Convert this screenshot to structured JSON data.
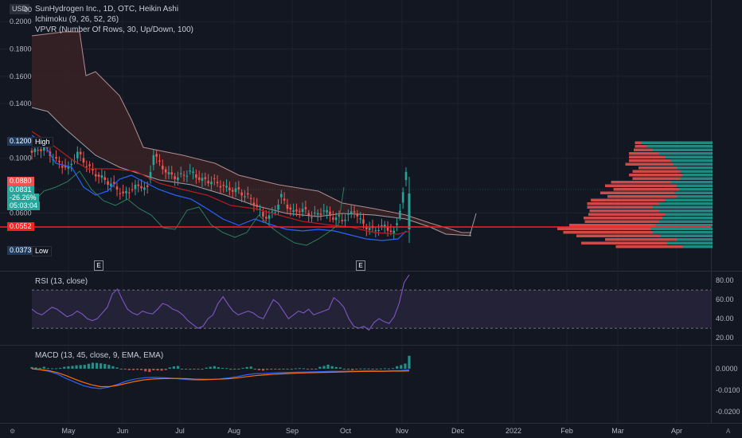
{
  "header": {
    "currency": "USD",
    "title": "SunHydrogen Inc., 1D, OTC, Heikin Ashi",
    "ichimoku_label": "Ichimoku (9, 26, 52, 26)",
    "vpvr_label": "VPVR (Number Of Rows, 30, Up/Down, 100)",
    "top_tick_partial": "00"
  },
  "badges": {
    "high_value": "0.1200",
    "high_label": "High",
    "low_value": "0.0373",
    "low_label": "Low",
    "red_value": "0.0880",
    "last_price": "0.0831",
    "last_change": "-26.26%",
    "countdown": "05:03:04",
    "line_value": "0.0552"
  },
  "event_markers": [
    "E",
    "E"
  ],
  "corner_icons": {
    "bottom_left": "gear-icon",
    "bottom_right": "auto-scale-icon",
    "auto_label": "A"
  },
  "colors": {
    "bg": "#131722",
    "up": "#26a69a",
    "down": "#ef5350",
    "grid": "#1e222d",
    "cloud_fill": "#3a2226",
    "rsi_band": "#262339",
    "rsi_line": "#7e57c2",
    "macd_line": "#2962ff",
    "signal_line": "#ff6d00",
    "support_line": "#ff1f1f"
  },
  "chart_data": [
    {
      "id": "price",
      "type": "candlestick",
      "title": "SunHydrogen Inc., 1D, OTC, Heikin Ashi",
      "x_ticks": [
        "May",
        "Jun",
        "Jul",
        "Aug",
        "Sep",
        "Oct",
        "Nov",
        "Dec",
        "2022",
        "Feb",
        "Mar",
        "Apr"
      ],
      "y_ticks": [
        "0.2000",
        "0.1800",
        "0.1600",
        "0.1400",
        "0.1000",
        "0.0600"
      ],
      "ylim": [
        0.038,
        0.21
      ],
      "close_path": [
        [
          0,
          0.104
        ],
        [
          4,
          0.108
        ],
        [
          8,
          0.098
        ],
        [
          12,
          0.092
        ],
        [
          15,
          0.104
        ],
        [
          17,
          0.098
        ],
        [
          20,
          0.09
        ],
        [
          24,
          0.084
        ],
        [
          28,
          0.078
        ],
        [
          30,
          0.073
        ],
        [
          33,
          0.078
        ],
        [
          36,
          0.08
        ],
        [
          38,
          0.077
        ],
        [
          40,
          0.104
        ],
        [
          42,
          0.096
        ],
        [
          45,
          0.088
        ],
        [
          48,
          0.086
        ],
        [
          52,
          0.09
        ],
        [
          56,
          0.084
        ],
        [
          60,
          0.083
        ],
        [
          64,
          0.078
        ],
        [
          68,
          0.076
        ],
        [
          72,
          0.07
        ],
        [
          74,
          0.064
        ],
        [
          76,
          0.058
        ],
        [
          78,
          0.057
        ],
        [
          80,
          0.062
        ],
        [
          82,
          0.072
        ],
        [
          84,
          0.065
        ],
        [
          86,
          0.06
        ],
        [
          88,
          0.063
        ],
        [
          90,
          0.061
        ],
        [
          92,
          0.058
        ],
        [
          94,
          0.059
        ],
        [
          96,
          0.062
        ],
        [
          98,
          0.058
        ],
        [
          100,
          0.056
        ],
        [
          102,
          0.055
        ],
        [
          104,
          0.058
        ],
        [
          106,
          0.062
        ],
        [
          108,
          0.054
        ],
        [
          110,
          0.05
        ],
        [
          112,
          0.047
        ],
        [
          114,
          0.049
        ],
        [
          116,
          0.05
        ],
        [
          118,
          0.047
        ],
        [
          119,
          0.045
        ],
        [
          120,
          0.052
        ],
        [
          122,
          0.075
        ],
        [
          123,
          0.088
        ]
      ],
      "volume_profile_up": [
        0.6,
        0.55,
        0.5,
        0.45,
        0.4,
        0.35,
        0.33,
        0.3,
        0.27,
        0.25,
        0.27,
        0.35,
        0.3,
        0.28,
        0.32,
        0.3,
        0.4,
        0.45,
        0.5,
        0.45,
        0.4,
        0.42,
        0.45,
        0.48,
        0.52,
        0.5,
        0.44,
        0.3,
        0.38,
        0.25
      ],
      "volume_profile_down": [
        0.05,
        0.1,
        0.16,
        0.25,
        0.3,
        0.35,
        0.4,
        0.32,
        0.4,
        0.45,
        0.4,
        0.5,
        0.6,
        0.55,
        0.62,
        0.58,
        0.62,
        0.6,
        0.55,
        0.58,
        0.64,
        0.66,
        0.62,
        0.72,
        0.78,
        0.75,
        0.7,
        0.6,
        0.72,
        0.56
      ]
    },
    {
      "id": "rsi",
      "type": "line",
      "title": "RSI (13, close)",
      "y_ticks": [
        "80.00",
        "60.00",
        "40.00",
        "20.00"
      ],
      "ylim": [
        16,
        86
      ],
      "band": [
        30,
        70
      ],
      "values": [
        50,
        46,
        44,
        48,
        52,
        50,
        46,
        42,
        44,
        48,
        45,
        40,
        38,
        40,
        46,
        52,
        66,
        71,
        60,
        50,
        46,
        44,
        48,
        46,
        45,
        50,
        56,
        54,
        50,
        48,
        44,
        38,
        34,
        30,
        32,
        40,
        44,
        56,
        63,
        55,
        48,
        44,
        46,
        48,
        46,
        42,
        40,
        50,
        60,
        56,
        48,
        40,
        44,
        48,
        46,
        50,
        44,
        46,
        48,
        50,
        62,
        58,
        52,
        40,
        32,
        30,
        32,
        28,
        36,
        40,
        37,
        35,
        42,
        56,
        78,
        86
      ]
    },
    {
      "id": "macd",
      "type": "line",
      "title": "MACD (13, 45, close, 9, EMA, EMA)",
      "y_ticks": [
        "0.0000",
        "-0.0100",
        "-0.0200"
      ],
      "ylim": [
        -0.0225,
        0.0085
      ],
      "macd": [
        0,
        -0.0005,
        -0.0012,
        -0.0025,
        -0.0045,
        -0.0062,
        -0.0078,
        -0.0088,
        -0.0092,
        -0.0085,
        -0.0072,
        -0.0058,
        -0.0048,
        -0.0042,
        -0.004,
        -0.0041,
        -0.0043,
        -0.0046,
        -0.005,
        -0.0052,
        -0.0052,
        -0.005,
        -0.0047,
        -0.0042,
        -0.0036,
        -0.0028,
        -0.0023,
        -0.0022,
        -0.002,
        -0.0018,
        -0.0017,
        -0.0016,
        -0.0015,
        -0.0014,
        -0.0013,
        -0.0012,
        -0.0012,
        -0.0011,
        -0.0011,
        -0.001,
        -0.001,
        -0.0011,
        -0.0009,
        -0.0008,
        -0.0005
      ],
      "signal": [
        0,
        -0.0004,
        -0.0009,
        -0.0018,
        -0.0032,
        -0.0048,
        -0.0063,
        -0.0075,
        -0.0083,
        -0.0083,
        -0.0077,
        -0.0068,
        -0.0059,
        -0.0052,
        -0.0048,
        -0.0046,
        -0.0045,
        -0.0045,
        -0.0046,
        -0.0048,
        -0.0049,
        -0.0049,
        -0.0048,
        -0.0046,
        -0.0042,
        -0.0037,
        -0.0032,
        -0.0029,
        -0.0026,
        -0.0024,
        -0.0022,
        -0.002,
        -0.0019,
        -0.0018,
        -0.0017,
        -0.0016,
        -0.0015,
        -0.0014,
        -0.0013,
        -0.0012,
        -0.0012,
        -0.0012,
        -0.0011,
        -0.0011,
        -0.001
      ],
      "histogram": [
        0.0008,
        0.0006,
        0.0004,
        0.0009,
        0.0003,
        0.0002,
        0.0002,
        0.0004,
        0.0009,
        0.0011,
        0.0013,
        0.0016,
        0.0017,
        0.0018,
        0.0023,
        0.0028,
        0.0027,
        0.0025,
        0.0022,
        0.0018,
        0.0012,
        0.0006,
        -0.0001,
        -0.0004,
        -0.0006,
        -0.0006,
        -0.0005,
        -0.0006,
        -0.0012,
        -0.0015,
        -0.0007,
        -0.0008,
        -0.0009,
        -0.0006,
        0.0006,
        0.0011,
        0.0013,
        -0.0002,
        -0.0003,
        -0.0004,
        -0.0003,
        -0.0002,
        -0.0001,
        0.0005,
        0.0009,
        0.0012,
        0.0007,
        0.0004,
        0.0003,
        -0.0004,
        -0.0001,
        -0.0001,
        0.0004,
        0.0008,
        0.001,
        -0.0004,
        -0.0007,
        -0.0009,
        -0.0005,
        -0.0004,
        -0.0003,
        -0.0004,
        -0.0002,
        -0.0002,
        -0.0001,
        0.0002,
        0.0003,
        0.0002,
        -0.0003,
        -0.0002,
        -0.0001,
        0.0009,
        0.0013,
        0.0019,
        0.0012,
        0.0008,
        0.0006,
        -0.0001,
        -0.0004,
        -0.0006,
        -0.0001,
        0.0001,
        0.0001,
        0.0001,
        -0.0001,
        0.0,
        0.0001,
        0.0002,
        0.0001,
        0.0003,
        0.0012,
        0.0017,
        0.0024,
        0.006
      ]
    }
  ]
}
